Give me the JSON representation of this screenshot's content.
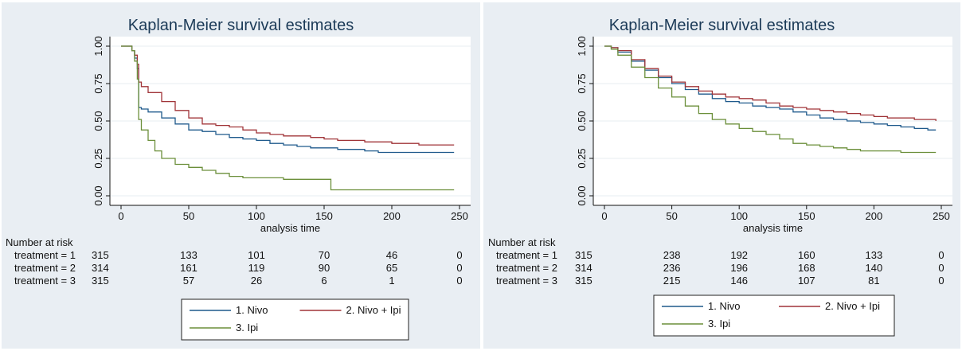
{
  "chart_data": [
    {
      "type": "line",
      "step": true,
      "title": "Kaplan-Meier survival estimates",
      "xlabel": "analysis time",
      "ylabel": "",
      "xlim": [
        0,
        250
      ],
      "ylim": [
        0,
        1
      ],
      "xticks": [
        0,
        50,
        100,
        150,
        200,
        250
      ],
      "yticks": [
        "0.00",
        "0.25",
        "0.50",
        "0.75",
        "1.00"
      ],
      "grid": true,
      "legend_position": "bottom",
      "risk_table": {
        "title": "Number at risk",
        "times": [
          0,
          50,
          100,
          150,
          200,
          250
        ],
        "rows": [
          {
            "label": "treatment = 1",
            "values": [
              315,
              133,
              101,
              70,
              46,
              0
            ]
          },
          {
            "label": "treatment = 2",
            "values": [
              314,
              161,
              119,
              90,
              65,
              0
            ]
          },
          {
            "label": "treatment = 3",
            "values": [
              315,
              57,
              26,
              6,
              1,
              0
            ]
          }
        ]
      },
      "series": [
        {
          "name": "1. Nivo",
          "color": "#1f5a8c",
          "x": [
            0,
            8,
            10,
            12,
            13,
            15,
            20,
            30,
            40,
            50,
            60,
            70,
            80,
            90,
            100,
            110,
            120,
            130,
            140,
            150,
            160,
            170,
            180,
            190,
            200,
            230,
            246
          ],
          "y": [
            1.0,
            0.97,
            0.92,
            0.85,
            0.59,
            0.58,
            0.56,
            0.52,
            0.48,
            0.44,
            0.43,
            0.41,
            0.39,
            0.38,
            0.37,
            0.35,
            0.34,
            0.33,
            0.32,
            0.32,
            0.31,
            0.31,
            0.3,
            0.29,
            0.29,
            0.29,
            0.29
          ]
        },
        {
          "name": "2. Nivo + Ipi",
          "color": "#a03438",
          "x": [
            0,
            8,
            10,
            12,
            13,
            15,
            20,
            30,
            40,
            50,
            60,
            70,
            80,
            90,
            100,
            110,
            120,
            130,
            140,
            150,
            160,
            170,
            180,
            190,
            200,
            220,
            246
          ],
          "y": [
            1.0,
            0.97,
            0.94,
            0.88,
            0.76,
            0.73,
            0.69,
            0.63,
            0.57,
            0.52,
            0.48,
            0.47,
            0.46,
            0.44,
            0.42,
            0.41,
            0.4,
            0.4,
            0.39,
            0.38,
            0.37,
            0.37,
            0.36,
            0.36,
            0.35,
            0.34,
            0.34
          ]
        },
        {
          "name": "3. Ipi",
          "color": "#6b8f3a",
          "x": [
            0,
            8,
            10,
            12,
            13,
            15,
            20,
            25,
            30,
            40,
            50,
            60,
            70,
            80,
            90,
            100,
            120,
            140,
            155,
            200,
            246
          ],
          "y": [
            1.0,
            0.97,
            0.9,
            0.78,
            0.51,
            0.44,
            0.37,
            0.3,
            0.25,
            0.21,
            0.19,
            0.17,
            0.15,
            0.13,
            0.12,
            0.12,
            0.11,
            0.11,
            0.04,
            0.04,
            0.04
          ]
        }
      ]
    },
    {
      "type": "line",
      "step": true,
      "title": "Kaplan-Meier survival estimates",
      "xlabel": "analysis time",
      "ylabel": "",
      "xlim": [
        0,
        250
      ],
      "ylim": [
        0,
        1
      ],
      "xticks": [
        0,
        50,
        100,
        150,
        200,
        250
      ],
      "yticks": [
        "0.00",
        "0.25",
        "0.50",
        "0.75",
        "1.00"
      ],
      "grid": true,
      "legend_position": "bottom",
      "risk_table": {
        "title": "Number at risk",
        "times": [
          0,
          50,
          100,
          150,
          200,
          250
        ],
        "rows": [
          {
            "label": "treatment = 1",
            "values": [
              315,
              238,
              192,
              160,
              133,
              0
            ]
          },
          {
            "label": "treatment = 2",
            "values": [
              314,
              236,
              196,
              168,
              140,
              0
            ]
          },
          {
            "label": "treatment = 3",
            "values": [
              315,
              215,
              146,
              107,
              81,
              0
            ]
          }
        ]
      },
      "series": [
        {
          "name": "1. Nivo",
          "color": "#1f5a8c",
          "x": [
            0,
            5,
            10,
            20,
            30,
            40,
            50,
            60,
            70,
            80,
            90,
            100,
            110,
            120,
            130,
            140,
            150,
            160,
            170,
            180,
            190,
            200,
            210,
            220,
            230,
            240,
            246
          ],
          "y": [
            1.0,
            0.99,
            0.96,
            0.9,
            0.84,
            0.79,
            0.75,
            0.71,
            0.68,
            0.65,
            0.63,
            0.62,
            0.6,
            0.59,
            0.58,
            0.56,
            0.54,
            0.52,
            0.51,
            0.5,
            0.49,
            0.48,
            0.47,
            0.46,
            0.45,
            0.44,
            0.44
          ]
        },
        {
          "name": "2. Nivo + Ipi",
          "color": "#a03438",
          "x": [
            0,
            5,
            10,
            20,
            30,
            40,
            50,
            60,
            70,
            80,
            90,
            100,
            110,
            120,
            130,
            140,
            150,
            160,
            170,
            180,
            190,
            200,
            210,
            220,
            230,
            240,
            246
          ],
          "y": [
            1.0,
            0.99,
            0.97,
            0.91,
            0.85,
            0.8,
            0.76,
            0.73,
            0.7,
            0.68,
            0.66,
            0.65,
            0.64,
            0.62,
            0.6,
            0.59,
            0.58,
            0.57,
            0.56,
            0.55,
            0.54,
            0.53,
            0.52,
            0.52,
            0.51,
            0.51,
            0.5
          ]
        },
        {
          "name": "3. Ipi",
          "color": "#6b8f3a",
          "x": [
            0,
            5,
            10,
            20,
            30,
            40,
            50,
            60,
            70,
            80,
            90,
            100,
            110,
            120,
            130,
            140,
            150,
            160,
            170,
            180,
            190,
            200,
            210,
            220,
            246
          ],
          "y": [
            1.0,
            0.98,
            0.94,
            0.86,
            0.79,
            0.72,
            0.66,
            0.6,
            0.55,
            0.51,
            0.48,
            0.45,
            0.43,
            0.41,
            0.38,
            0.35,
            0.34,
            0.33,
            0.32,
            0.31,
            0.3,
            0.3,
            0.3,
            0.29,
            0.29
          ]
        }
      ]
    }
  ]
}
